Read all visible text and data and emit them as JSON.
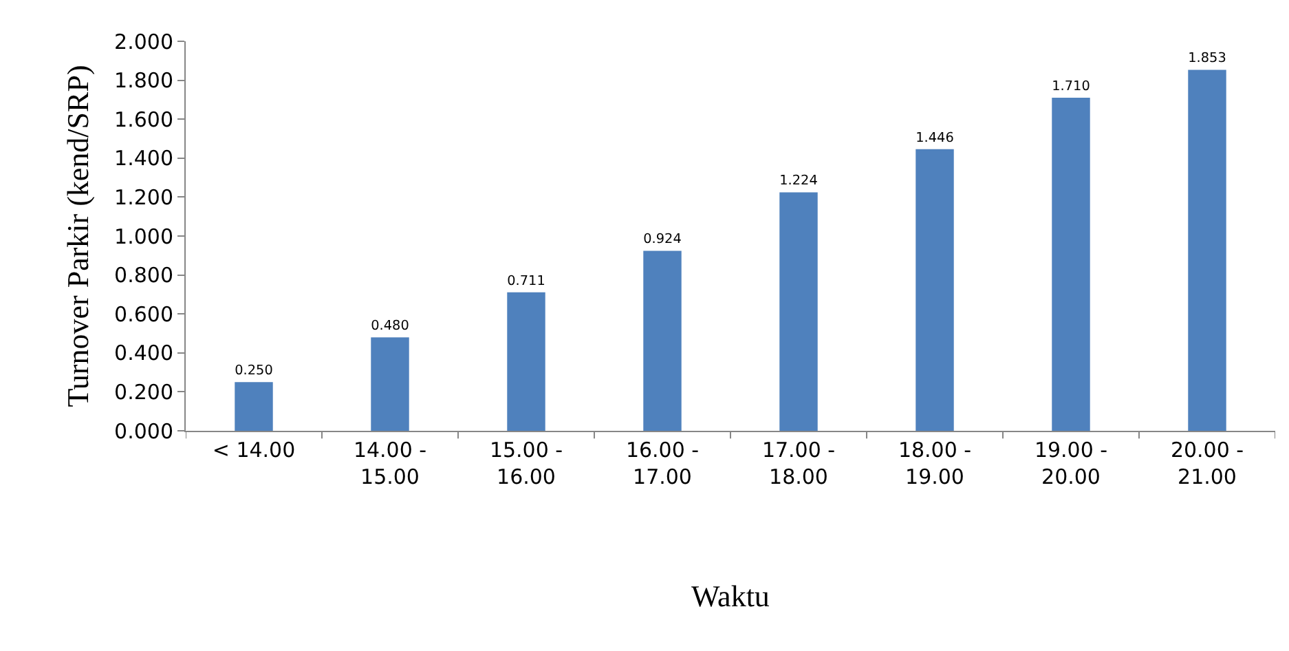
{
  "chart_data": {
    "type": "bar",
    "xlabel": "Waktu",
    "ylabel": "Turnover Parkir (kend/SRP)",
    "categories": [
      "< 14.00",
      "14.00 - 15.00",
      "15.00 - 16.00",
      "16.00 - 17.00",
      "17.00 - 18.00",
      "18.00 - 19.00",
      "19.00 - 20.00",
      "20.00 - 21.00"
    ],
    "values": [
      0.25,
      0.48,
      0.711,
      0.924,
      1.224,
      1.446,
      1.71,
      1.853
    ],
    "value_labels": [
      "0.250",
      "0.480",
      "0.711",
      "0.924",
      "1.224",
      "1.446",
      "1.710",
      "1.853"
    ],
    "color": "#4f81bd",
    "ylim": [
      0,
      2
    ],
    "yticks": [
      {
        "value": 0,
        "label": "0.000"
      },
      {
        "value": 0.2,
        "label": "0.200"
      },
      {
        "value": 0.4,
        "label": "0.400"
      },
      {
        "value": 0.6,
        "label": "0.600"
      },
      {
        "value": 0.8,
        "label": "0.800"
      },
      {
        "value": 1,
        "label": "1.000"
      },
      {
        "value": 1.2,
        "label": "1.200"
      },
      {
        "value": 1.4,
        "label": "1.400"
      },
      {
        "value": 1.6,
        "label": "1.600"
      },
      {
        "value": 1.8,
        "label": "1.800"
      },
      {
        "value": 2,
        "label": "2.000"
      }
    ],
    "grid": false
  }
}
